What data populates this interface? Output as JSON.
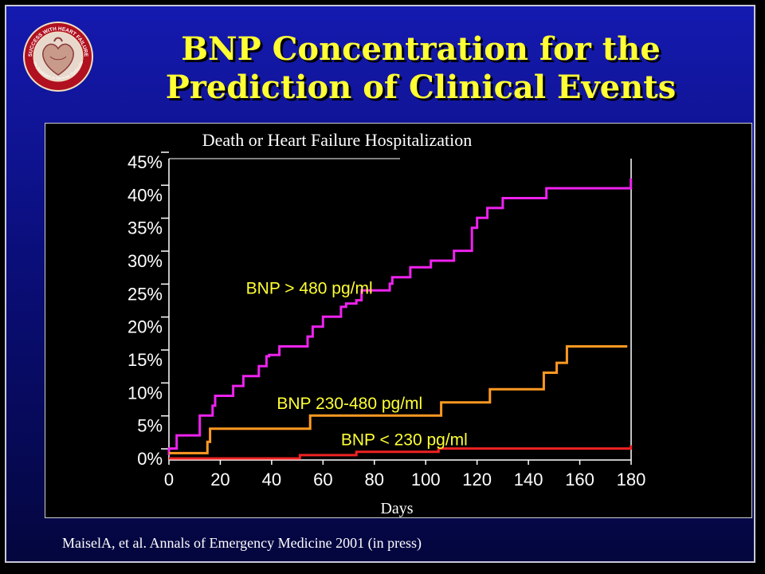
{
  "slide": {
    "title_line1": "BNP Concentration for the",
    "title_line2": "Prediction of Clinical Events",
    "citation": "MaiselA, et al. Annals of Emergency Medicine 2001 (in press)",
    "logo": {
      "icon": "heart-failure-society-seal",
      "text": "SUCCESS WITH HEART FAILURE — New Strategies to Reverse Heart Dysfunction"
    }
  },
  "colors": {
    "background": "#0a0e7a",
    "title": "#ffff33",
    "chart_background": "#000000",
    "label_text": "#ffff33"
  },
  "chart_data": {
    "type": "line",
    "subtype": "step",
    "title": "Death or Heart Failure Hospitalization",
    "xlabel": "Days",
    "ylabel": "",
    "xlim": [
      0,
      180
    ],
    "ylim": [
      0,
      45
    ],
    "x_ticks": [
      0,
      20,
      40,
      60,
      80,
      100,
      120,
      140,
      160,
      180
    ],
    "x_tick_labels": [
      "0",
      "20",
      "40",
      "60",
      "80",
      "100",
      "120",
      "140",
      "160",
      "180"
    ],
    "y_ticks": [
      0,
      5,
      10,
      15,
      20,
      25,
      30,
      35,
      40,
      45
    ],
    "y_tick_labels": [
      "0%",
      "5%",
      "10%",
      "15%",
      "20%",
      "25%",
      "30%",
      "35%",
      "40%",
      "45%"
    ],
    "grid": false,
    "legend": "none",
    "series": [
      {
        "name": "BNP > 480 pg/ml",
        "color": "#ee22ee",
        "label_at": [
          30,
          25
        ],
        "x": [
          0,
          0,
          3,
          12,
          17,
          18,
          25,
          29,
          35,
          38,
          39,
          43,
          54,
          56,
          60,
          67,
          69,
          73,
          75,
          86,
          87,
          87,
          94,
          102,
          111,
          118,
          120,
          124,
          130,
          147,
          179,
          179.9
        ],
        "y": [
          0.5,
          1.5,
          3.5,
          6.5,
          8,
          9.5,
          11,
          12.5,
          14,
          15.5,
          15.7,
          17,
          18.5,
          20,
          21.5,
          23,
          23.5,
          24,
          25.5,
          26.5,
          27,
          27.5,
          29,
          30,
          31.5,
          35,
          36.5,
          38,
          39.5,
          41,
          41,
          42.5
        ]
      },
      {
        "name": "BNP 230-480 pg/ml",
        "color": "#ff9922",
        "label_at": [
          42,
          7.5
        ],
        "x": [
          0,
          15,
          16,
          55,
          106,
          125,
          146,
          151,
          155,
          178.5
        ],
        "y": [
          0.8,
          2.5,
          4.5,
          6.5,
          8.5,
          10.5,
          13,
          14.5,
          17,
          17
        ],
        "connect_y": [
          0.8,
          2.5,
          4.5,
          6.5,
          8.5,
          10.5,
          13,
          14.5,
          17,
          17
        ]
      },
      {
        "name": "BNP < 230 pg/ml",
        "color": "#ee2222",
        "label_at": [
          67,
          2
        ],
        "x": [
          0,
          51,
          73,
          105,
          178,
          179.9
        ],
        "y": [
          0,
          0.5,
          1,
          1.5,
          1.5,
          2
        ]
      }
    ]
  }
}
